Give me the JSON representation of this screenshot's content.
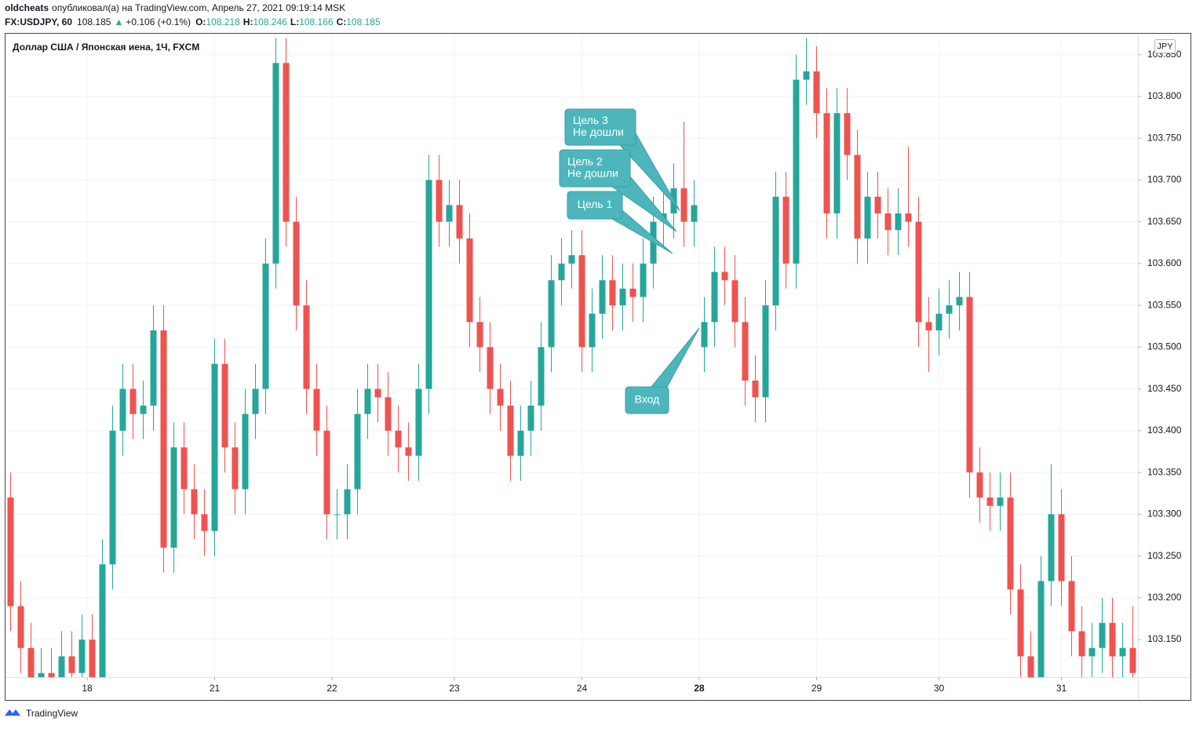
{
  "header": {
    "author": "oldcheats",
    "published": "опубликовал(а) на TradingView.com, Апрель 27, 2021 09:19:14 MSK",
    "symbol": "FX:USDJPY, 60",
    "last": "108.185",
    "arrow": "▲",
    "change": "+0.106 (+0.1%)",
    "o_label": "O:",
    "o": "108.218",
    "h_label": "H:",
    "h": "108.246",
    "l_label": "L:",
    "l": "108.166",
    "c_label": "C:",
    "c": "108.185"
  },
  "footer": {
    "brand": "TradingView"
  },
  "chart_data": {
    "type": "candlestick",
    "legend_title": "Доллар США / Японская иена, 1Ч, FXCM",
    "currency": "JPY",
    "up_color": "#26a69a",
    "down_color": "#ef5350",
    "grid": true,
    "x": [
      0,
      2,
      4,
      6,
      8,
      10,
      12,
      14,
      16,
      18,
      20,
      22,
      24,
      26,
      28,
      30,
      32,
      34,
      36,
      38,
      40,
      42,
      44,
      46,
      48,
      50,
      52,
      54,
      56,
      58,
      60,
      62,
      64,
      66,
      68,
      70,
      72,
      74,
      76,
      78,
      80,
      82,
      84,
      86,
      88,
      90,
      92,
      94,
      96,
      98,
      100,
      102,
      104,
      106,
      108,
      110,
      112,
      114,
      116,
      118,
      120,
      122,
      124,
      126,
      128,
      130,
      132,
      134,
      136,
      138,
      140,
      142,
      144,
      146,
      148,
      150,
      152,
      154,
      156,
      158,
      160,
      162,
      164,
      166,
      168,
      170,
      172,
      174,
      176,
      178,
      180,
      182,
      184,
      186,
      188,
      190,
      192,
      194,
      196,
      198,
      200,
      202,
      204,
      206,
      208,
      210,
      212,
      214,
      216,
      218,
      220
    ],
    "open": [
      103.32,
      103.19,
      103.14,
      103.1,
      103.11,
      103.1,
      103.13,
      103.11,
      103.15,
      103.1,
      103.24,
      103.4,
      103.45,
      103.42,
      103.43,
      103.52,
      103.26,
      103.38,
      103.33,
      103.3,
      103.28,
      103.48,
      103.38,
      103.33,
      103.42,
      103.45,
      103.6,
      103.84,
      103.65,
      103.55,
      103.45,
      103.4,
      103.3,
      103.3,
      103.33,
      103.42,
      103.45,
      103.44,
      103.4,
      103.38,
      103.37,
      103.45,
      103.7,
      103.65,
      103.67,
      103.63,
      103.53,
      103.5,
      103.45,
      103.43,
      103.37,
      103.4,
      103.43,
      103.5,
      103.58,
      103.6,
      103.61,
      103.5,
      103.54,
      103.58,
      103.55,
      103.57,
      103.56,
      103.6,
      103.65,
      103.66,
      103.69,
      103.65,
      103.5,
      103.53,
      103.59,
      103.58,
      103.53,
      103.46,
      103.44,
      103.55,
      103.68,
      103.6,
      103.82,
      103.83,
      103.78,
      103.66,
      103.78,
      103.73,
      103.63,
      103.68,
      103.66,
      103.64,
      103.66,
      103.65,
      103.53,
      103.52,
      103.54,
      103.55,
      103.56,
      103.35,
      103.32,
      103.31,
      103.32,
      103.21,
      103.13,
      103.1,
      103.22,
      103.3,
      103.22,
      103.16,
      103.13,
      103.14,
      103.17,
      103.13,
      103.14
    ],
    "high": [
      103.35,
      103.22,
      103.17,
      103.14,
      103.14,
      103.16,
      103.16,
      103.18,
      103.18,
      103.27,
      103.43,
      103.48,
      103.48,
      103.46,
      103.55,
      103.55,
      103.41,
      103.41,
      103.36,
      103.33,
      103.51,
      103.51,
      103.41,
      103.45,
      103.48,
      103.63,
      103.87,
      103.87,
      103.68,
      103.58,
      103.48,
      103.43,
      103.33,
      103.36,
      103.45,
      103.48,
      103.48,
      103.47,
      103.43,
      103.41,
      103.48,
      103.73,
      103.73,
      103.7,
      103.7,
      103.66,
      103.56,
      103.53,
      103.48,
      103.46,
      103.43,
      103.46,
      103.53,
      103.61,
      103.63,
      103.64,
      103.64,
      103.57,
      103.61,
      103.61,
      103.6,
      103.6,
      103.63,
      103.68,
      103.69,
      103.72,
      103.77,
      103.7,
      103.56,
      103.62,
      103.62,
      103.61,
      103.56,
      103.49,
      103.58,
      103.71,
      103.71,
      103.85,
      103.87,
      103.86,
      103.81,
      103.81,
      103.81,
      103.76,
      103.71,
      103.71,
      103.69,
      103.69,
      103.74,
      103.68,
      103.56,
      103.57,
      103.58,
      103.59,
      103.59,
      103.38,
      103.35,
      103.35,
      103.35,
      103.24,
      103.16,
      103.25,
      103.36,
      103.33,
      103.25,
      103.19,
      103.17,
      103.2,
      103.2,
      103.17,
      103.19
    ],
    "low": [
      103.16,
      103.11,
      103.07,
      103.07,
      103.07,
      103.07,
      103.08,
      103.08,
      103.07,
      103.07,
      103.21,
      103.37,
      103.39,
      103.39,
      103.4,
      103.23,
      103.23,
      103.3,
      103.27,
      103.25,
      103.25,
      103.35,
      103.3,
      103.3,
      103.39,
      103.42,
      103.57,
      103.62,
      103.52,
      103.42,
      103.37,
      103.27,
      103.27,
      103.27,
      103.3,
      103.39,
      103.41,
      103.37,
      103.35,
      103.34,
      103.34,
      103.42,
      103.62,
      103.62,
      103.6,
      103.5,
      103.47,
      103.42,
      103.4,
      103.34,
      103.34,
      103.37,
      103.4,
      103.47,
      103.55,
      103.57,
      103.47,
      103.47,
      103.51,
      103.52,
      103.52,
      103.53,
      103.53,
      103.57,
      103.62,
      103.63,
      103.62,
      103.62,
      103.47,
      103.5,
      103.55,
      103.5,
      103.43,
      103.41,
      103.41,
      103.52,
      103.57,
      103.57,
      103.79,
      103.75,
      103.63,
      103.63,
      103.7,
      103.6,
      103.6,
      103.63,
      103.61,
      103.61,
      103.62,
      103.5,
      103.47,
      103.49,
      103.51,
      103.52,
      103.32,
      103.29,
      103.28,
      103.28,
      103.18,
      103.1,
      103.07,
      103.07,
      103.19,
      103.19,
      103.13,
      103.1,
      103.1,
      103.11,
      103.1,
      103.1,
      103.08
    ],
    "close": [
      103.19,
      103.14,
      103.1,
      103.11,
      103.1,
      103.13,
      103.11,
      103.15,
      103.1,
      103.24,
      103.4,
      103.45,
      103.42,
      103.43,
      103.52,
      103.26,
      103.38,
      103.33,
      103.3,
      103.28,
      103.48,
      103.38,
      103.33,
      103.42,
      103.45,
      103.6,
      103.84,
      103.65,
      103.55,
      103.45,
      103.4,
      103.3,
      103.3,
      103.33,
      103.42,
      103.45,
      103.44,
      103.4,
      103.38,
      103.37,
      103.45,
      103.7,
      103.65,
      103.67,
      103.63,
      103.53,
      103.5,
      103.45,
      103.43,
      103.37,
      103.4,
      103.43,
      103.5,
      103.58,
      103.6,
      103.61,
      103.5,
      103.54,
      103.58,
      103.55,
      103.57,
      103.56,
      103.6,
      103.65,
      103.66,
      103.69,
      103.65,
      103.67,
      103.53,
      103.59,
      103.58,
      103.53,
      103.46,
      103.44,
      103.55,
      103.68,
      103.6,
      103.82,
      103.83,
      103.78,
      103.66,
      103.78,
      103.73,
      103.63,
      103.68,
      103.66,
      103.64,
      103.66,
      103.65,
      103.53,
      103.52,
      103.54,
      103.55,
      103.56,
      103.35,
      103.32,
      103.31,
      103.32,
      103.21,
      103.13,
      103.1,
      103.22,
      103.3,
      103.22,
      103.16,
      103.13,
      103.14,
      103.17,
      103.13,
      103.14,
      103.11
    ],
    "xlim": [
      -1,
      221
    ],
    "ylim": [
      103.105,
      103.875
    ],
    "xticks": [
      {
        "value": 15,
        "label": "18"
      },
      {
        "value": 40,
        "label": "21"
      },
      {
        "value": 63,
        "label": "22"
      },
      {
        "value": 87,
        "label": "23"
      },
      {
        "value": 112,
        "label": "24"
      },
      {
        "value": 135,
        "label": "28"
      },
      {
        "value": 158,
        "label": "29"
      },
      {
        "value": 182,
        "label": "30"
      },
      {
        "value": 206,
        "label": "31"
      }
    ],
    "yticks": [
      {
        "value": 103.15,
        "label": "103.150"
      },
      {
        "value": 103.2,
        "label": "103.200"
      },
      {
        "value": 103.25,
        "label": "103.250"
      },
      {
        "value": 103.3,
        "label": "103.300"
      },
      {
        "value": 103.35,
        "label": "103.350"
      },
      {
        "value": 103.4,
        "label": "103.400"
      },
      {
        "value": 103.45,
        "label": "103.450"
      },
      {
        "value": 103.5,
        "label": "103.500"
      },
      {
        "value": 103.55,
        "label": "103.550"
      },
      {
        "value": 103.6,
        "label": "103.600"
      },
      {
        "value": 103.65,
        "label": "103.650"
      },
      {
        "value": 103.7,
        "label": "103.700"
      },
      {
        "value": 103.75,
        "label": "103.750"
      },
      {
        "value": 103.8,
        "label": "103.800"
      },
      {
        "value": 103.85,
        "label": "103.850"
      }
    ],
    "annotations": [
      {
        "text": [
          "Цель 3",
          "Не дошли"
        ]
      },
      {
        "text": [
          "Цель 2",
          "Не дошли"
        ]
      },
      {
        "text": [
          "Цель 1"
        ]
      },
      {
        "text": [
          "Вход"
        ]
      }
    ]
  }
}
